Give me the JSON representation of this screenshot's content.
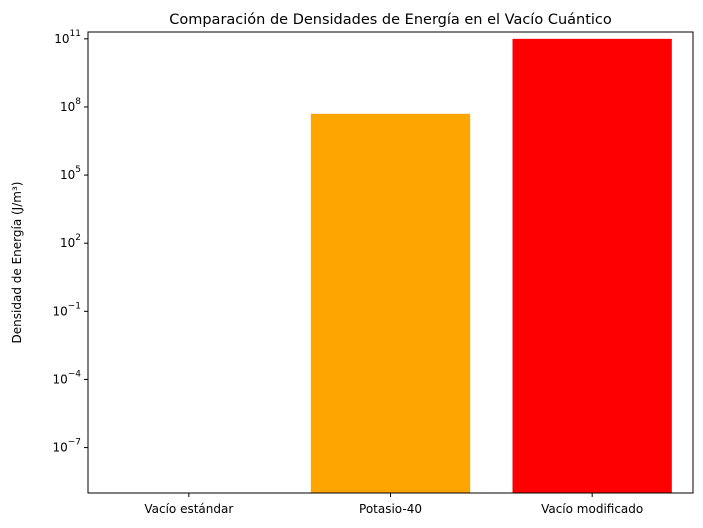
{
  "chart_data": {
    "type": "bar",
    "title": "Comparación de Densidades de Energía en el Vacío Cuántico",
    "xlabel": "",
    "ylabel": "Densidad de Energía (J/m³)",
    "yscale": "log",
    "ylim": [
      1e-09,
      200000000000.0
    ],
    "yticks": [
      {
        "value": 1e-07,
        "base": "10",
        "exp": "−7"
      },
      {
        "value": 0.0001,
        "base": "10",
        "exp": "−4"
      },
      {
        "value": 0.1,
        "base": "10",
        "exp": "−1"
      },
      {
        "value": 100.0,
        "base": "10",
        "exp": "2"
      },
      {
        "value": 100000.0,
        "base": "10",
        "exp": "5"
      },
      {
        "value": 100000000.0,
        "base": "10",
        "exp": "8"
      },
      {
        "value": 100000000000.0,
        "base": "10",
        "exp": "11"
      }
    ],
    "categories": [
      "Vacío estándar",
      "Potasio-40",
      "Vacío modificado"
    ],
    "values": [
      1e-09,
      50000000.0,
      100000000000.0
    ],
    "colors": [
      "#0000ff",
      "#ffa500",
      "#ff0000"
    ],
    "grid": false
  }
}
